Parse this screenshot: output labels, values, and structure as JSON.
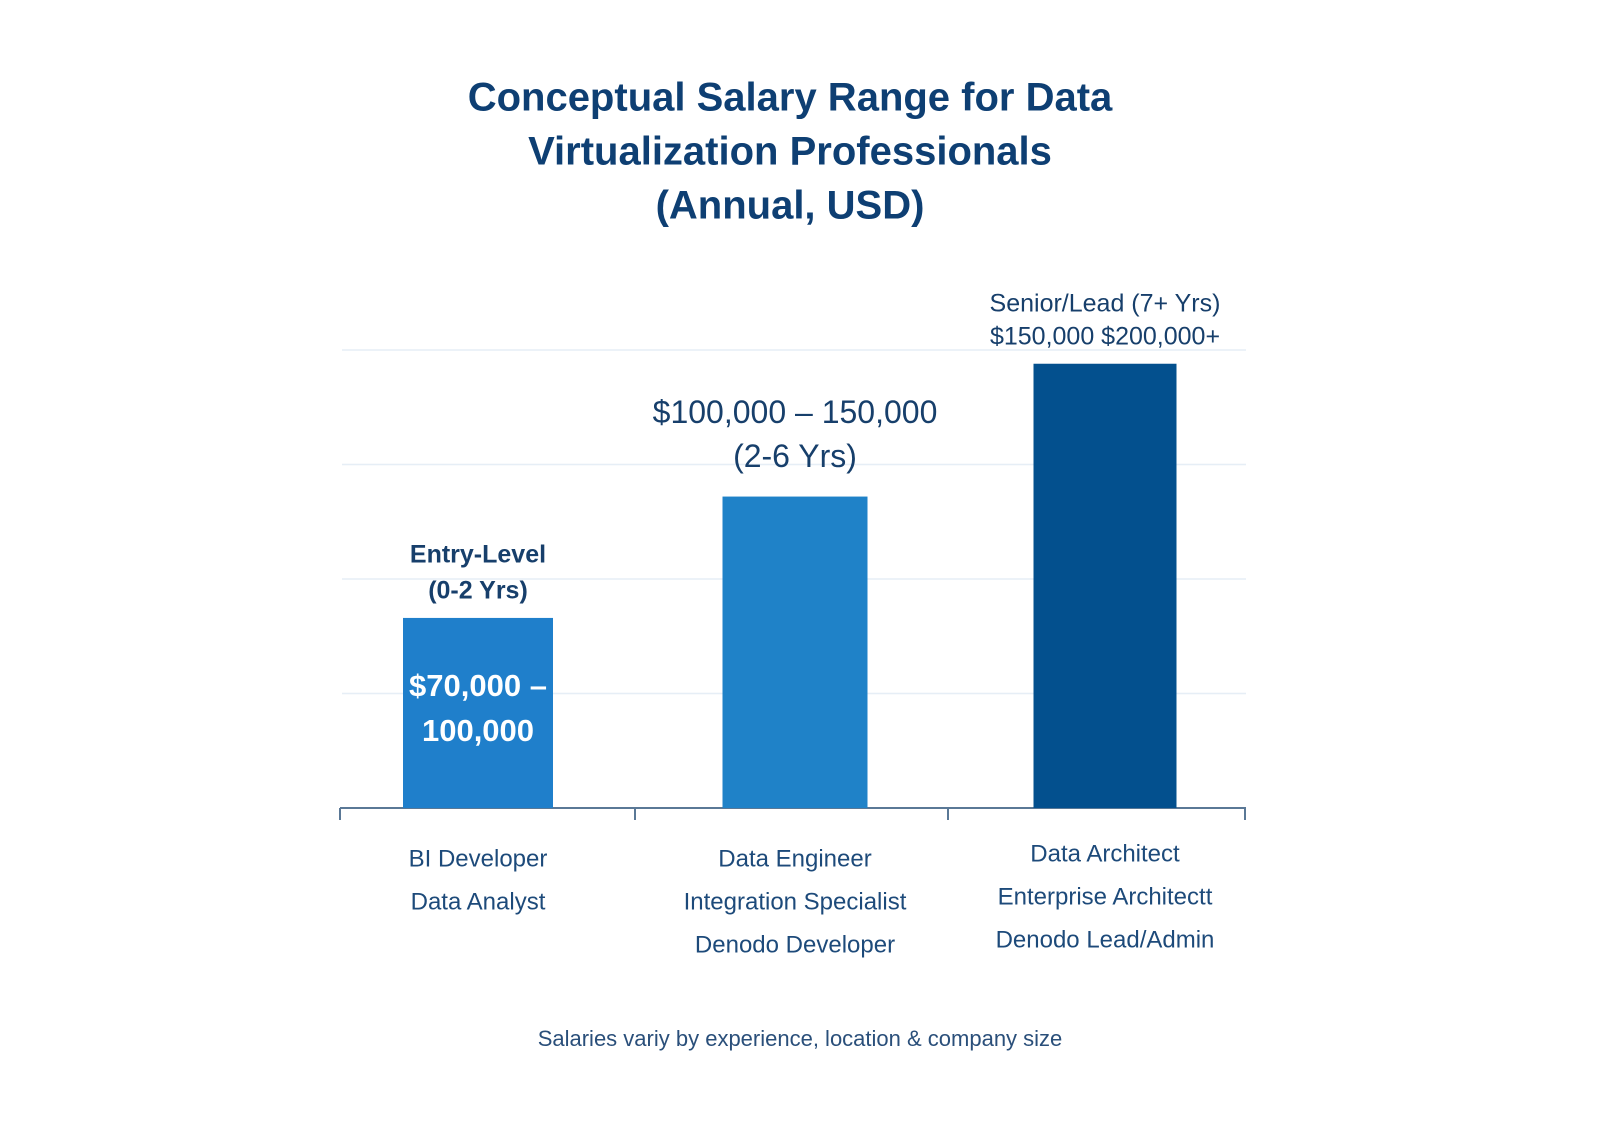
{
  "chart_data": {
    "type": "bar",
    "title": [
      "Conceptual Salary Range for Data",
      "Virtualization Professionals",
      "(Annual, USD)"
    ],
    "categories": [
      [
        "BI Developer",
        "Data Analyst"
      ],
      [
        "Data Engineer",
        "Integration Specialist",
        "Denodo Developer"
      ],
      [
        "Data Architect",
        "Enterprise Architectt",
        "Denodo Lead/Admin"
      ]
    ],
    "values": [
      83000,
      136000,
      194000
    ],
    "colors": [
      "#1f7fcb",
      "#1f82c8",
      "#03508e"
    ],
    "ylim": [
      0,
      200000
    ],
    "grid": true,
    "bar_labels": [
      {
        "above": [
          "Entry-Level",
          "(0-2 Yrs)"
        ],
        "inside": [
          "$70,000 –",
          "100,000"
        ]
      },
      {
        "above": [
          "$100,000 – 150,000",
          "(2-6 Yrs)"
        ]
      },
      {
        "above": [
          "Senior/Lead (7+ Yrs)",
          "$150,000 $200,000+"
        ]
      }
    ],
    "footnote": "Salaries variy by experience, location & company size"
  }
}
